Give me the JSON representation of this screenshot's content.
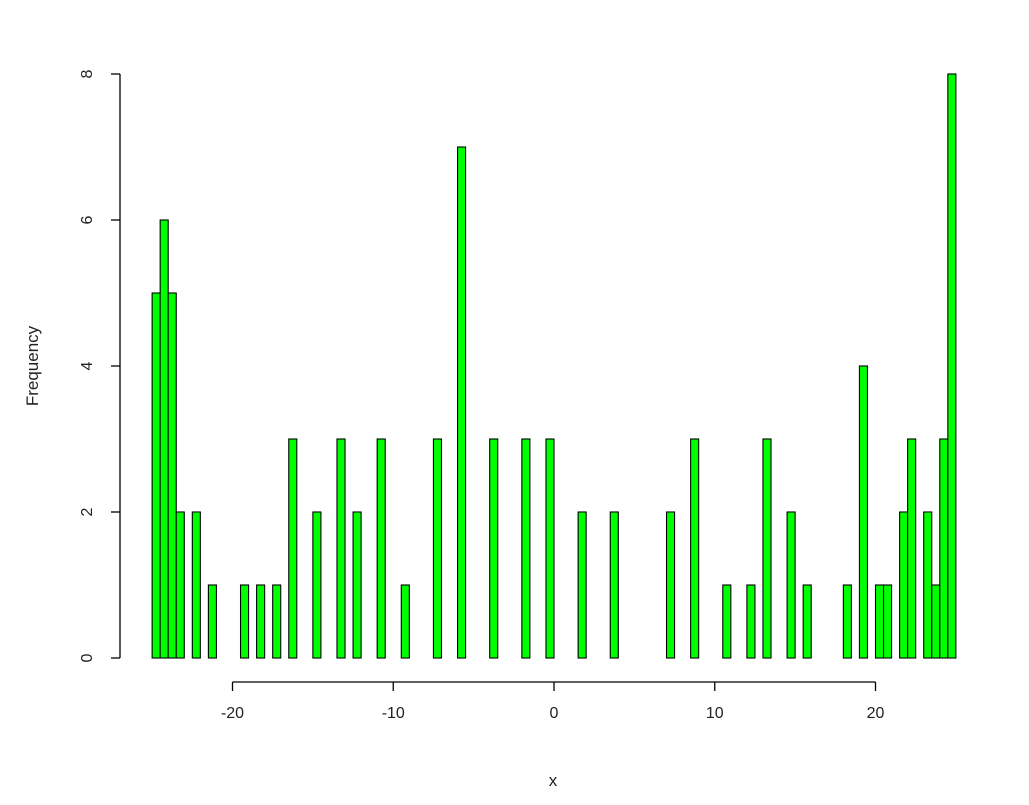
{
  "chart_data": {
    "type": "bar",
    "chart_style": "histogram",
    "xlabel": "x",
    "ylabel": "Frequency",
    "xlim": [
      -20,
      20
    ],
    "ylim": [
      0,
      8
    ],
    "x_ticks": [
      -20,
      -10,
      0,
      10,
      20
    ],
    "y_ticks": [
      0,
      2,
      4,
      6,
      8
    ],
    "bin_width": 0.5,
    "grid": false,
    "bar_color": "#00ff00",
    "bar_border_color": "#000000",
    "bins": [
      {
        "x0": -25.0,
        "count": 5
      },
      {
        "x0": -24.5,
        "count": 6
      },
      {
        "x0": -24.0,
        "count": 5
      },
      {
        "x0": -23.5,
        "count": 2
      },
      {
        "x0": -23.0,
        "count": 0
      },
      {
        "x0": -22.5,
        "count": 2
      },
      {
        "x0": -22.0,
        "count": 0
      },
      {
        "x0": -21.5,
        "count": 1
      },
      {
        "x0": -21.0,
        "count": 0
      },
      {
        "x0": -20.5,
        "count": 0
      },
      {
        "x0": -20.0,
        "count": 0
      },
      {
        "x0": -19.5,
        "count": 1
      },
      {
        "x0": -19.0,
        "count": 0
      },
      {
        "x0": -18.5,
        "count": 1
      },
      {
        "x0": -18.0,
        "count": 0
      },
      {
        "x0": -17.5,
        "count": 1
      },
      {
        "x0": -17.0,
        "count": 0
      },
      {
        "x0": -16.5,
        "count": 3
      },
      {
        "x0": -16.0,
        "count": 0
      },
      {
        "x0": -15.5,
        "count": 0
      },
      {
        "x0": -15.0,
        "count": 2
      },
      {
        "x0": -14.5,
        "count": 0
      },
      {
        "x0": -14.0,
        "count": 0
      },
      {
        "x0": -13.5,
        "count": 3
      },
      {
        "x0": -13.0,
        "count": 0
      },
      {
        "x0": -12.5,
        "count": 2
      },
      {
        "x0": -12.0,
        "count": 0
      },
      {
        "x0": -11.5,
        "count": 0
      },
      {
        "x0": -11.0,
        "count": 3
      },
      {
        "x0": -10.5,
        "count": 0
      },
      {
        "x0": -10.0,
        "count": 0
      },
      {
        "x0": -9.5,
        "count": 1
      },
      {
        "x0": -9.0,
        "count": 0
      },
      {
        "x0": -8.5,
        "count": 0
      },
      {
        "x0": -8.0,
        "count": 0
      },
      {
        "x0": -7.5,
        "count": 3
      },
      {
        "x0": -7.0,
        "count": 0
      },
      {
        "x0": -6.5,
        "count": 0
      },
      {
        "x0": -6.0,
        "count": 7
      },
      {
        "x0": -5.5,
        "count": 0
      },
      {
        "x0": -5.0,
        "count": 0
      },
      {
        "x0": -4.5,
        "count": 0
      },
      {
        "x0": -4.0,
        "count": 3
      },
      {
        "x0": -3.5,
        "count": 0
      },
      {
        "x0": -3.0,
        "count": 0
      },
      {
        "x0": -2.5,
        "count": 0
      },
      {
        "x0": -2.0,
        "count": 3
      },
      {
        "x0": -1.5,
        "count": 0
      },
      {
        "x0": -1.0,
        "count": 0
      },
      {
        "x0": -0.5,
        "count": 3
      },
      {
        "x0": 0.0,
        "count": 0
      },
      {
        "x0": 0.5,
        "count": 0
      },
      {
        "x0": 1.0,
        "count": 0
      },
      {
        "x0": 1.5,
        "count": 2
      },
      {
        "x0": 2.0,
        "count": 0
      },
      {
        "x0": 2.5,
        "count": 0
      },
      {
        "x0": 3.0,
        "count": 0
      },
      {
        "x0": 3.5,
        "count": 2
      },
      {
        "x0": 4.0,
        "count": 0
      },
      {
        "x0": 4.5,
        "count": 0
      },
      {
        "x0": 5.0,
        "count": 0
      },
      {
        "x0": 5.5,
        "count": 0
      },
      {
        "x0": 6.0,
        "count": 0
      },
      {
        "x0": 6.5,
        "count": 0
      },
      {
        "x0": 7.0,
        "count": 2
      },
      {
        "x0": 7.5,
        "count": 0
      },
      {
        "x0": 8.0,
        "count": 0
      },
      {
        "x0": 8.5,
        "count": 3
      },
      {
        "x0": 9.0,
        "count": 0
      },
      {
        "x0": 9.5,
        "count": 0
      },
      {
        "x0": 10.0,
        "count": 0
      },
      {
        "x0": 10.5,
        "count": 1
      },
      {
        "x0": 11.0,
        "count": 0
      },
      {
        "x0": 11.5,
        "count": 0
      },
      {
        "x0": 12.0,
        "count": 1
      },
      {
        "x0": 12.5,
        "count": 0
      },
      {
        "x0": 13.0,
        "count": 3
      },
      {
        "x0": 13.5,
        "count": 0
      },
      {
        "x0": 14.0,
        "count": 0
      },
      {
        "x0": 14.5,
        "count": 2
      },
      {
        "x0": 15.0,
        "count": 0
      },
      {
        "x0": 15.5,
        "count": 1
      },
      {
        "x0": 16.0,
        "count": 0
      },
      {
        "x0": 16.5,
        "count": 0
      },
      {
        "x0": 17.0,
        "count": 0
      },
      {
        "x0": 17.5,
        "count": 0
      },
      {
        "x0": 18.0,
        "count": 1
      },
      {
        "x0": 18.5,
        "count": 0
      },
      {
        "x0": 19.0,
        "count": 4
      },
      {
        "x0": 19.5,
        "count": 0
      },
      {
        "x0": 20.0,
        "count": 1
      },
      {
        "x0": 20.5,
        "count": 1
      },
      {
        "x0": 21.0,
        "count": 0
      },
      {
        "x0": 21.5,
        "count": 2
      },
      {
        "x0": 22.0,
        "count": 3
      },
      {
        "x0": 22.5,
        "count": 0
      },
      {
        "x0": 23.0,
        "count": 2
      },
      {
        "x0": 23.5,
        "count": 1
      },
      {
        "x0": 24.0,
        "count": 3
      },
      {
        "x0": 24.5,
        "count": 8
      }
    ]
  }
}
